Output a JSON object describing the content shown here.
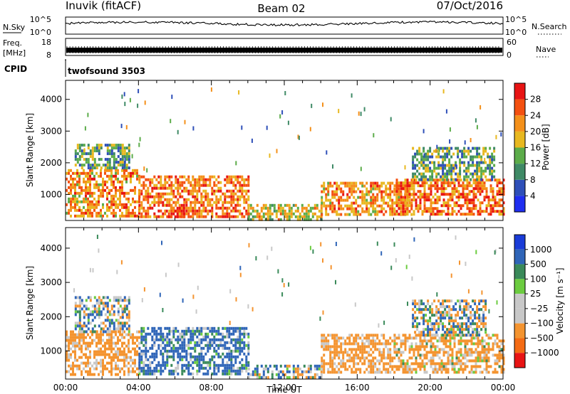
{
  "header": {
    "station": "Inuvik (fitACF)",
    "beam": "Beam 02",
    "date": "07/Oct/2016"
  },
  "top_panels": {
    "nsky_label": "N.Sky",
    "nsky_ticks": [
      "10^5",
      "10^0"
    ],
    "nsearch_label": "N.Search",
    "nsearch_ticks": [
      "10^5",
      "10^0"
    ],
    "freq_label_line1": "Freq.",
    "freq_label_line2": "[MHz]",
    "freq_ticks": [
      "18",
      "8"
    ],
    "nave_label": "Nave",
    "nave_ticks": [
      "60",
      "0"
    ],
    "cpid_label": "CPID",
    "cpid_value": "twofsound 3503"
  },
  "colors": {
    "power": [
      "#1f2ef0",
      "#2e4fb8",
      "#3f8a66",
      "#5cac4a",
      "#e8b820",
      "#f4901a",
      "#f45010",
      "#e81414"
    ],
    "velocity": [
      "#e81414",
      "#f46b14",
      "#f49430",
      "#c8c8c8",
      "#c8c8c8",
      "#6ccc40",
      "#3a8a5a",
      "#2f65b8",
      "#1a3cd8"
    ]
  },
  "chart_data": [
    {
      "type": "heatmap",
      "name": "power",
      "xlabel": "",
      "ylabel": "Slant Range [km]",
      "xlim": [
        0,
        24
      ],
      "ylim": [
        180,
        4600
      ],
      "yticks": [
        1000,
        2000,
        3000,
        4000
      ],
      "colorbar": {
        "label": "Power [dB]",
        "range": [
          0,
          32
        ],
        "ticks": [
          "4",
          "8",
          "12",
          "16",
          "20",
          "24",
          "28"
        ]
      },
      "echo_bands": [
        {
          "x": [
            0.0,
            4.0
          ],
          "y": [
            300,
            1800
          ],
          "value": 22
        },
        {
          "x": [
            0.5,
            3.5
          ],
          "y": [
            1800,
            2600
          ],
          "value": 12
        },
        {
          "x": [
            4.0,
            10.0
          ],
          "y": [
            300,
            1600
          ],
          "value": 24
        },
        {
          "x": [
            5.5,
            6.5
          ],
          "y": [
            300,
            700
          ],
          "value": 30
        },
        {
          "x": [
            10.0,
            14.0
          ],
          "y": [
            250,
            700
          ],
          "value": 18
        },
        {
          "x": [
            14.0,
            19.0
          ],
          "y": [
            400,
            1400
          ],
          "value": 22
        },
        {
          "x": [
            18.0,
            24.0
          ],
          "y": [
            400,
            1500
          ],
          "value": 24
        },
        {
          "x": [
            19.0,
            23.5
          ],
          "y": [
            1500,
            2500
          ],
          "value": 12
        }
      ]
    },
    {
      "type": "heatmap",
      "name": "velocity",
      "xlabel": "Time UT",
      "ylabel": "Slant Range [km]",
      "xlim": [
        0,
        24
      ],
      "ylim": [
        180,
        4600
      ],
      "xticks": [
        "00:00",
        "04:00",
        "08:00",
        "12:00",
        "16:00",
        "20:00",
        "00:00"
      ],
      "yticks": [
        1000,
        2000,
        3000,
        4000
      ],
      "colorbar": {
        "label": "Velocity [m s⁻¹]",
        "ticks": [
          "1000",
          "500",
          "100",
          "25",
          "−25",
          "−100",
          "−500",
          "−1000"
        ]
      },
      "echo_bands": [
        {
          "x": [
            0.0,
            4.0
          ],
          "y": [
            300,
            1600
          ],
          "value": -250
        },
        {
          "x": [
            0.5,
            3.5
          ],
          "y": [
            1600,
            2600
          ],
          "value": 60
        },
        {
          "x": [
            4.0,
            10.0
          ],
          "y": [
            300,
            1700
          ],
          "value": 200
        },
        {
          "x": [
            10.0,
            14.0
          ],
          "y": [
            250,
            600
          ],
          "value": 50
        },
        {
          "x": [
            14.0,
            18.0
          ],
          "y": [
            400,
            1500
          ],
          "value": -250
        },
        {
          "x": [
            18.0,
            24.0
          ],
          "y": [
            400,
            1500
          ],
          "value": -200
        },
        {
          "x": [
            19.0,
            23.0
          ],
          "y": [
            1500,
            2500
          ],
          "value": 0
        }
      ]
    }
  ]
}
